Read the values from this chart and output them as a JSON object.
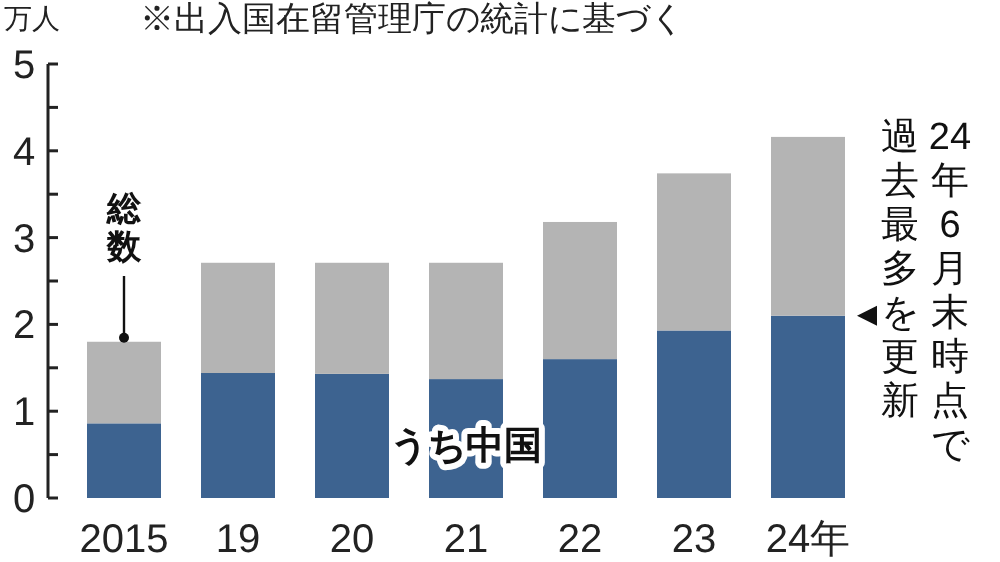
{
  "chart_data": {
    "type": "bar",
    "stacked": true,
    "ylabel": "万人",
    "categories": [
      "2015",
      "19",
      "20",
      "21",
      "22",
      "23",
      "24年"
    ],
    "series": [
      {
        "name": "うち中国",
        "color": "#3d6390",
        "values": [
          0.86,
          1.44,
          1.43,
          1.37,
          1.6,
          1.93,
          2.1
        ]
      },
      {
        "name": "総数",
        "color": "#b4b4b4",
        "values": [
          0.94,
          1.27,
          1.28,
          1.34,
          1.58,
          1.81,
          2.06
        ]
      }
    ],
    "ylim": [
      0,
      5
    ],
    "yticks": [
      0,
      {
        "value": 0.5,
        "label": null
      },
      1,
      {
        "value": 1.5,
        "label": null
      },
      2,
      {
        "value": 2.5,
        "label": null
      },
      3,
      {
        "value": 3.5,
        "label": null
      },
      4,
      {
        "value": 4.5,
        "label": null
      },
      5
    ],
    "annotations": [
      "※出入国在留管理庁の統計に基づく",
      "24年6月末時点で",
      "過去最多を更新"
    ]
  }
}
